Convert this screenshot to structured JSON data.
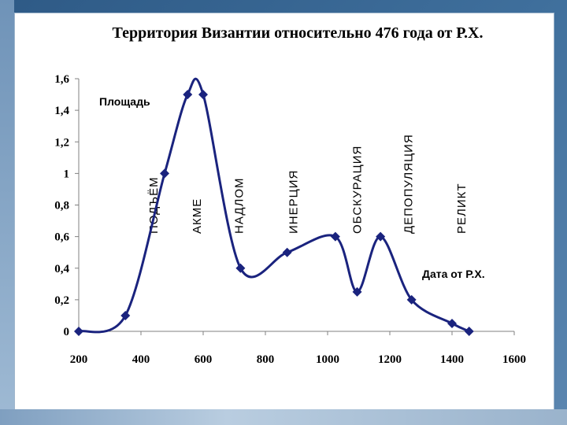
{
  "chart_data": {
    "type": "line",
    "title": "Территория Византии относительно 476 года от Р.Х.",
    "ylabel": "Площадь",
    "xlabel": "Дата от Р.Х.",
    "xlim": [
      200,
      1600
    ],
    "ylim": [
      0,
      1.6
    ],
    "x_ticks": [
      "200",
      "400",
      "600",
      "800",
      "1000",
      "1200",
      "1400",
      "1600"
    ],
    "y_ticks": [
      "0",
      "0,2",
      "0,4",
      "0,6",
      "0,8",
      "1",
      "1,2",
      "1,4",
      "1,6"
    ],
    "grid": false,
    "x": [
      200,
      350,
      476,
      550,
      600,
      720,
      870,
      1025,
      1095,
      1170,
      1270,
      1400,
      1455
    ],
    "values": [
      0,
      0.1,
      1.0,
      1.5,
      1.5,
      0.4,
      0.5,
      0.6,
      0.25,
      0.6,
      0.2,
      0.05,
      0
    ],
    "phases": [
      {
        "label": "ПОДЪЁМ",
        "x": 440
      },
      {
        "label": "АКМЕ",
        "x": 580
      },
      {
        "label": "НАДЛОМ",
        "x": 715
      },
      {
        "label": "ИНЕРЦИЯ",
        "x": 890
      },
      {
        "label": "ОБСКУРАЦИЯ",
        "x": 1095
      },
      {
        "label": "ДЕПОПУЛЯЦИЯ",
        "x": 1260
      },
      {
        "label": "РЕЛИКТ",
        "x": 1430
      }
    ],
    "colors": {
      "line": "#1a237e",
      "marker": "#1a237e"
    }
  }
}
